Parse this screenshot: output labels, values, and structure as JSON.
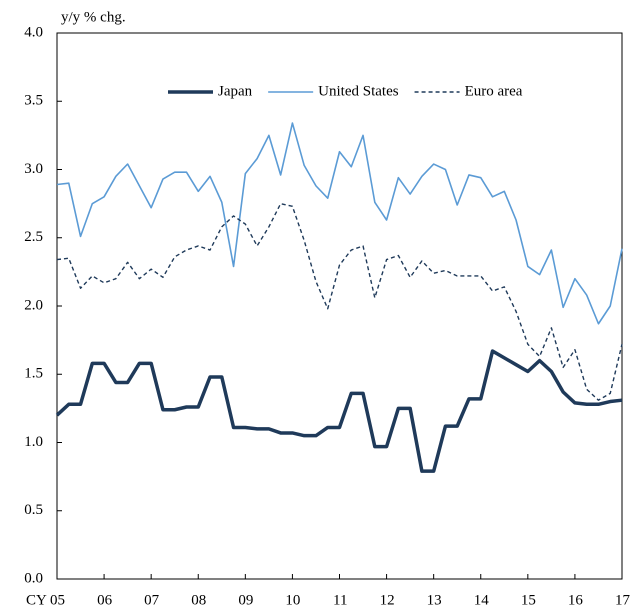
{
  "chart_data": {
    "type": "line",
    "y_label": "y/y % chg.",
    "x": [
      2005,
      2005.25,
      2005.5,
      2005.75,
      2006,
      2006.25,
      2006.5,
      2006.75,
      2007,
      2007.25,
      2007.5,
      2007.75,
      2008,
      2008.25,
      2008.5,
      2008.75,
      2009,
      2009.25,
      2009.5,
      2009.75,
      2010,
      2010.25,
      2010.5,
      2010.75,
      2011,
      2011.25,
      2011.5,
      2011.75,
      2012,
      2012.25,
      2012.5,
      2012.75,
      2013,
      2013.25,
      2013.5,
      2013.75,
      2014,
      2014.25,
      2014.5,
      2014.75,
      2015,
      2015.25,
      2015.5,
      2015.75,
      2016,
      2016.25,
      2016.5,
      2016.75,
      2017
    ],
    "series": [
      {
        "name": "Japan",
        "color": "#1f3a5a",
        "dashed": false,
        "values": [
          1.2,
          1.28,
          1.28,
          1.58,
          1.58,
          1.44,
          1.44,
          1.58,
          1.58,
          1.24,
          1.24,
          1.26,
          1.26,
          1.48,
          1.48,
          1.11,
          1.11,
          1.1,
          1.1,
          1.07,
          1.07,
          1.05,
          1.05,
          1.11,
          1.11,
          1.36,
          1.36,
          0.97,
          0.97,
          1.25,
          1.25,
          0.79,
          0.79,
          1.12,
          1.12,
          1.32,
          1.32,
          1.67,
          1.62,
          1.57,
          1.52,
          1.6,
          1.52,
          1.37,
          1.29,
          1.28,
          1.28,
          1.3,
          1.31
        ]
      },
      {
        "name": "United States",
        "color": "#5b9bd5",
        "dashed": false,
        "values": [
          2.89,
          2.9,
          2.51,
          2.75,
          2.8,
          2.95,
          3.04,
          2.88,
          2.72,
          2.93,
          2.98,
          2.98,
          2.84,
          2.95,
          2.76,
          2.29,
          2.97,
          3.08,
          3.25,
          2.96,
          3.34,
          3.03,
          2.88,
          2.79,
          3.13,
          3.02,
          3.25,
          2.76,
          2.63,
          2.94,
          2.82,
          2.95,
          3.04,
          3.0,
          2.74,
          2.96,
          2.94,
          2.8,
          2.84,
          2.63,
          2.29,
          2.23,
          2.41,
          1.99,
          2.2,
          2.08,
          1.87,
          2.0,
          2.42
        ]
      },
      {
        "name": "Euro area",
        "color": "#1f3a5a",
        "dashed": true,
        "values": [
          2.34,
          2.35,
          2.13,
          2.22,
          2.17,
          2.2,
          2.32,
          2.2,
          2.27,
          2.21,
          2.36,
          2.41,
          2.44,
          2.41,
          2.58,
          2.66,
          2.6,
          2.44,
          2.58,
          2.75,
          2.73,
          2.48,
          2.18,
          1.98,
          2.3,
          2.41,
          2.44,
          2.06,
          2.34,
          2.37,
          2.21,
          2.33,
          2.24,
          2.26,
          2.22,
          2.22,
          2.22,
          2.11,
          2.14,
          1.96,
          1.72,
          1.63,
          1.84,
          1.55,
          1.68,
          1.39,
          1.31,
          1.36,
          1.72
        ]
      }
    ],
    "xlim": [
      2005,
      2017
    ],
    "xticks": [
      {
        "value": 2005,
        "label": "CY 05"
      },
      {
        "value": 2006,
        "label": "06"
      },
      {
        "value": 2007,
        "label": "07"
      },
      {
        "value": 2008,
        "label": "08"
      },
      {
        "value": 2009,
        "label": "09"
      },
      {
        "value": 2010,
        "label": "10"
      },
      {
        "value": 2011,
        "label": "11"
      },
      {
        "value": 2012,
        "label": "12"
      },
      {
        "value": 2013,
        "label": "13"
      },
      {
        "value": 2014,
        "label": "14"
      },
      {
        "value": 2015,
        "label": "15"
      },
      {
        "value": 2016,
        "label": "16"
      },
      {
        "value": 2017,
        "label": "17"
      }
    ],
    "ylim": [
      0,
      4
    ],
    "yticks": [
      {
        "value": 0,
        "label": "0.0"
      },
      {
        "value": 0.5,
        "label": "0.5"
      },
      {
        "value": 1,
        "label": "1.0"
      },
      {
        "value": 1.5,
        "label": "1.5"
      },
      {
        "value": 2,
        "label": "2.0"
      },
      {
        "value": 2.5,
        "label": "2.5"
      },
      {
        "value": 3,
        "label": "3.0"
      },
      {
        "value": 3.5,
        "label": "3.5"
      },
      {
        "value": 4,
        "label": "4.0"
      }
    ],
    "grid": false,
    "legend": "top"
  }
}
